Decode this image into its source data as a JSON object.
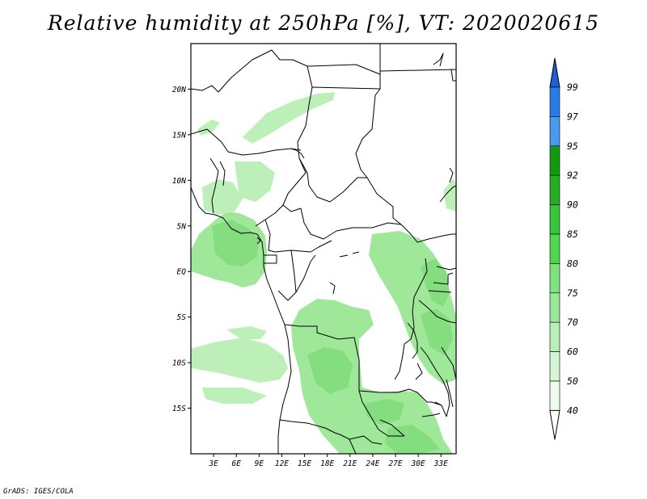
{
  "title": "Relative humidity at 250hPa [%], VT: 2020020615",
  "credit": "GrADS: IGES/COLA",
  "map": {
    "lon_range": [
      0,
      35
    ],
    "lat_range": [
      -20,
      25
    ],
    "lat_ticks": [
      {
        "value": 20,
        "label": "20N"
      },
      {
        "value": 15,
        "label": "15N"
      },
      {
        "value": 10,
        "label": "10N"
      },
      {
        "value": 5,
        "label": "5N"
      },
      {
        "value": 0,
        "label": "EQ"
      },
      {
        "value": -5,
        "label": "5S"
      },
      {
        "value": -10,
        "label": "10S"
      },
      {
        "value": -15,
        "label": "15S"
      }
    ],
    "lon_ticks": [
      {
        "value": 3,
        "label": "3E"
      },
      {
        "value": 6,
        "label": "6E"
      },
      {
        "value": 9,
        "label": "9E"
      },
      {
        "value": 12,
        "label": "12E"
      },
      {
        "value": 15,
        "label": "15E"
      },
      {
        "value": 18,
        "label": "18E"
      },
      {
        "value": 21,
        "label": "21E"
      },
      {
        "value": 24,
        "label": "24E"
      },
      {
        "value": 27,
        "label": "27E"
      },
      {
        "value": 30,
        "label": "30E"
      },
      {
        "value": 33,
        "label": "33E"
      }
    ],
    "field": "relative humidity at 250hPa",
    "field_color": "#9fe89a"
  },
  "colorbar": {
    "labels": [
      "99",
      "97",
      "95",
      "92",
      "90",
      "85",
      "80",
      "75",
      "70",
      "60",
      "50",
      "40"
    ],
    "colors": [
      "#1c5fd6",
      "#2a7ae6",
      "#4a99ee",
      "#139a13",
      "#25ae25",
      "#38c338",
      "#52d652",
      "#7fe27f",
      "#99e899",
      "#b8f0b8",
      "#d5f6d5",
      "#eefcee"
    ]
  }
}
